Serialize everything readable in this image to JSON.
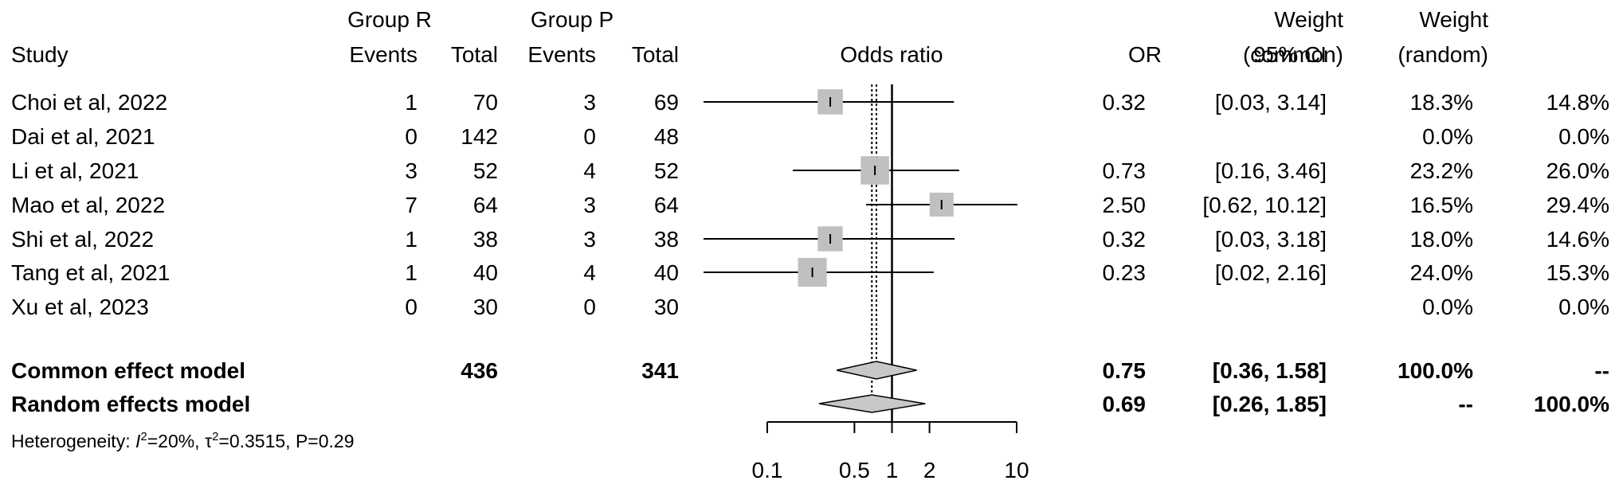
{
  "headers": {
    "study": "Study",
    "group_r": "Group R",
    "group_p": "Group P",
    "events": "Events",
    "total": "Total",
    "odds_ratio": "Odds ratio",
    "or": "OR",
    "ci": "95% CI",
    "weight_common_1": "Weight",
    "weight_common_2": "(common)",
    "weight_random_1": "Weight",
    "weight_random_2": "(random)"
  },
  "studies": [
    {
      "study": "Choi et al, 2022",
      "r_events": "1",
      "r_total": "70",
      "p_events": "3",
      "p_total": "69",
      "or": "0.32",
      "ci": "[0.03,  3.14]",
      "w_common": "18.3%",
      "w_random": "14.8%"
    },
    {
      "study": "Dai et al, 2021",
      "r_events": "0",
      "r_total": "142",
      "p_events": "0",
      "p_total": "48",
      "or": "",
      "ci": "",
      "w_common": "0.0%",
      "w_random": "0.0%"
    },
    {
      "study": "Li et al, 2021",
      "r_events": "3",
      "r_total": "52",
      "p_events": "4",
      "p_total": "52",
      "or": "0.73",
      "ci": "[0.16,  3.46]",
      "w_common": "23.2%",
      "w_random": "26.0%"
    },
    {
      "study": "Mao et al, 2022",
      "r_events": "7",
      "r_total": "64",
      "p_events": "3",
      "p_total": "64",
      "or": "2.50",
      "ci": "[0.62, 10.12]",
      "w_common": "16.5%",
      "w_random": "29.4%"
    },
    {
      "study": "Shi et al, 2022",
      "r_events": "1",
      "r_total": "38",
      "p_events": "3",
      "p_total": "38",
      "or": "0.32",
      "ci": "[0.03,  3.18]",
      "w_common": "18.0%",
      "w_random": "14.6%"
    },
    {
      "study": "Tang et al, 2021",
      "r_events": "1",
      "r_total": "40",
      "p_events": "4",
      "p_total": "40",
      "or": "0.23",
      "ci": "[0.02,  2.16]",
      "w_common": "24.0%",
      "w_random": "15.3%"
    },
    {
      "study": "Xu et al, 2023",
      "r_events": "0",
      "r_total": "30",
      "p_events": "0",
      "p_total": "30",
      "or": "",
      "ci": "",
      "w_common": "0.0%",
      "w_random": "0.0%"
    }
  ],
  "summary": [
    {
      "label": "Common effect model",
      "r_total": "436",
      "p_total": "341",
      "or": "0.75",
      "ci": "[0.36,  1.58]",
      "w_common": "100.0%",
      "w_random": "--"
    },
    {
      "label": "Random effects model",
      "r_total": "",
      "p_total": "",
      "or": "0.69",
      "ci": "[0.26,  1.85]",
      "w_common": "--",
      "w_random": "100.0%"
    }
  ],
  "heterogeneity": {
    "prefix": "Heterogeneity: ",
    "i2_symbol": "I",
    "sup": "2",
    "i2_value": "=20%, ",
    "tau_symbol": "τ",
    "tau_value": "=0.3515, P=0.29"
  },
  "chart_data": {
    "type": "forest",
    "xlabel": "",
    "x_scale": "log",
    "xlim": [
      0.1,
      10
    ],
    "x_ticks": [
      0.1,
      0.5,
      1,
      2,
      10
    ],
    "x_tick_labels": [
      "0.1",
      "0.5",
      "1",
      "2",
      "10"
    ],
    "reference_line": 1,
    "pooled_line_common": 0.75,
    "pooled_line_random": 0.69,
    "studies": [
      {
        "name": "Choi et al, 2022",
        "or": 0.32,
        "lower": 0.03,
        "upper": 3.14,
        "weight_common": 18.3
      },
      {
        "name": "Dai et al, 2021",
        "or": null,
        "lower": null,
        "upper": null,
        "weight_common": 0.0
      },
      {
        "name": "Li et al, 2021",
        "or": 0.73,
        "lower": 0.16,
        "upper": 3.46,
        "weight_common": 23.2
      },
      {
        "name": "Mao et al, 2022",
        "or": 2.5,
        "lower": 0.62,
        "upper": 10.12,
        "weight_common": 16.5
      },
      {
        "name": "Shi et al, 2022",
        "or": 0.32,
        "lower": 0.03,
        "upper": 3.18,
        "weight_common": 18.0
      },
      {
        "name": "Tang et al, 2021",
        "or": 0.23,
        "lower": 0.02,
        "upper": 2.16,
        "weight_common": 24.0
      },
      {
        "name": "Xu et al, 2023",
        "or": null,
        "lower": null,
        "upper": null,
        "weight_common": 0.0
      }
    ],
    "pooled": [
      {
        "name": "Common effect model",
        "or": 0.75,
        "lower": 0.36,
        "upper": 1.58
      },
      {
        "name": "Random effects model",
        "or": 0.69,
        "lower": 0.26,
        "upper": 1.85
      }
    ],
    "colors": {
      "square": "#c0c0c0",
      "diamond": "#c8c8c8",
      "line": "#000000"
    }
  }
}
